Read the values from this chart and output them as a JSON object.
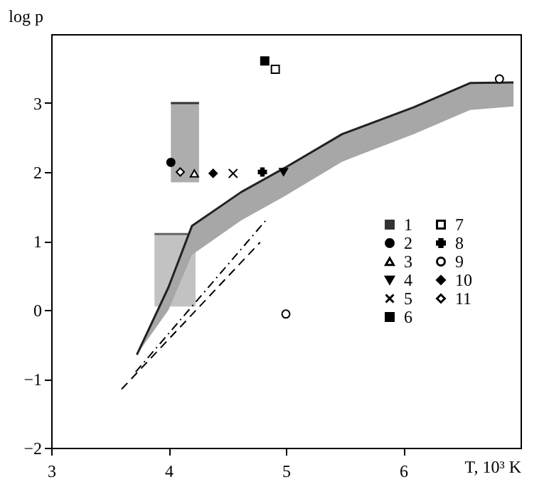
{
  "chart_data": {
    "type": "scatter",
    "xlabel": "T, 10³ K",
    "ylabel": "log p",
    "xlim": [
      3,
      7
    ],
    "ylim": [
      -2,
      4
    ],
    "xticks": [
      3,
      4,
      5,
      6
    ],
    "yticks": [
      -2,
      -1,
      0,
      1,
      2,
      3
    ],
    "grid": false,
    "legend": "right",
    "series": [
      {
        "type": "line",
        "color": "#666666",
        "x": [
          3.88,
          4.23
        ],
        "values": [
          1.1,
          1.1
        ],
        "upper": [
          1.1,
          1.1
        ],
        "lower": [
          0.05,
          0.05
        ]
      },
      {
        "type": "line",
        "color": "#222222",
        "x": [
          3.73,
          4.0,
          4.2,
          4.62,
          4.99,
          5.48,
          6.09,
          6.57,
          6.94
        ],
        "values": [
          -0.65,
          0.33,
          1.22,
          1.71,
          2.06,
          2.55,
          2.94,
          3.29,
          3.3
        ],
        "upper": [
          -0.65,
          0.33,
          1.22,
          1.71,
          2.06,
          2.55,
          2.94,
          3.29,
          3.3
        ],
        "lower": [
          -0.65,
          0.0,
          0.8,
          1.3,
          1.65,
          2.15,
          2.55,
          2.9,
          2.95
        ]
      },
      {
        "type": "line",
        "line_style": "dashed",
        "color": "#000000",
        "x": [
          3.6,
          4.78
        ],
        "values": [
          -1.15,
          0.98
        ]
      },
      {
        "type": "line",
        "line_style": "dotted",
        "color": "#000000",
        "x": [
          3.72,
          4.83
        ],
        "values": [
          -0.9,
          1.3
        ]
      },
      {
        "name": "1",
        "type": "line",
        "color": "#333333",
        "x": [
          4.02,
          4.26
        ],
        "values": [
          3.0,
          3.0
        ],
        "upper": [
          3.0,
          3.0
        ],
        "lower": [
          1.85,
          1.85
        ]
      },
      {
        "name": "2",
        "marker": "circle",
        "color": "#000000",
        "x": [
          4.02
        ],
        "values": [
          2.14
        ]
      },
      {
        "name": "3",
        "marker": "triangle-open",
        "color": "#000000",
        "x": [
          4.22
        ],
        "values": [
          1.98
        ]
      },
      {
        "name": "4",
        "marker": "triangle-down",
        "color": "#000000",
        "x": [
          4.98
        ],
        "values": [
          2.0
        ]
      },
      {
        "name": "5",
        "marker": "x",
        "color": "#000000",
        "x": [
          4.55
        ],
        "values": [
          1.98
        ]
      },
      {
        "name": "6",
        "marker": "square",
        "color": "#000000",
        "x": [
          4.82
        ],
        "values": [
          3.61
        ]
      },
      {
        "name": "7",
        "marker": "square-open",
        "color": "#000000",
        "x": [
          4.91
        ],
        "values": [
          3.49
        ]
      },
      {
        "name": "8",
        "marker": "cross",
        "color": "#000000",
        "x": [
          4.8
        ],
        "values": [
          2.0
        ]
      },
      {
        "name": "9",
        "marker": "circle-open",
        "color": "#000000",
        "x": [
          5.0,
          6.82
        ],
        "values": [
          -0.06,
          3.35
        ]
      },
      {
        "name": "10",
        "marker": "diamond",
        "color": "#000000",
        "x": [
          4.38
        ],
        "values": [
          1.98
        ]
      },
      {
        "name": "11",
        "marker": "diamond-open",
        "color": "#000000",
        "x": [
          4.1
        ],
        "values": [
          2.0
        ]
      }
    ]
  }
}
